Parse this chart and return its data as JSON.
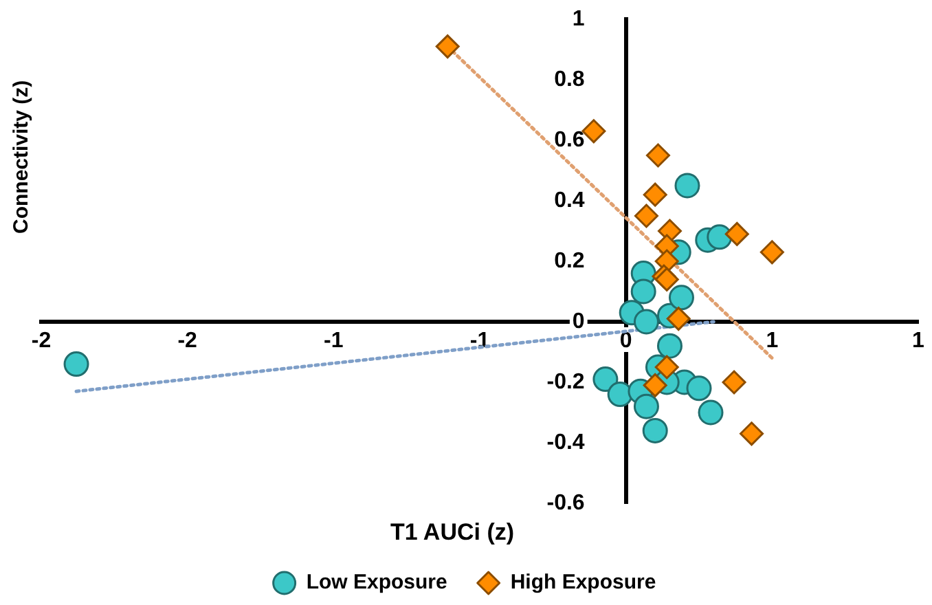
{
  "chart_data": {
    "type": "scatter",
    "xlabel": "T1 AUCi (z)",
    "ylabel": "Connectivity (z)",
    "xlim": [
      -2,
      1
    ],
    "ylim": [
      -0.6,
      1
    ],
    "xticks": [
      {
        "value": -2,
        "label": "-2"
      },
      {
        "value": -1.5,
        "label": "-2"
      },
      {
        "value": -1,
        "label": "-1"
      },
      {
        "value": -0.5,
        "label": "-1"
      },
      0,
      {
        "value": 0.5,
        "label": "1"
      },
      {
        "value": 1,
        "label": "1"
      }
    ],
    "yticks": [
      -0.6,
      -0.4,
      -0.2,
      0,
      0.2,
      0.4,
      0.6,
      0.8,
      1
    ],
    "grid": false,
    "legend": "bottom",
    "line_style": "dotted",
    "series": [
      {
        "name": "Low Exposure",
        "type": "scatter",
        "marker": "circle",
        "color": "#3cc8c8",
        "x": [
          -1.88,
          0.21,
          0.28,
          0.32,
          0.18,
          0.06,
          0.02,
          0.07,
          0.15,
          0.19,
          0.06,
          0.15,
          0.11,
          -0.07,
          -0.02,
          0.05,
          0.07,
          0.1,
          0.2,
          0.25,
          0.29,
          0.14
        ],
        "values": [
          -0.14,
          0.45,
          0.27,
          0.28,
          0.23,
          0.16,
          0.03,
          0.0,
          0.02,
          0.08,
          0.1,
          -0.08,
          -0.15,
          -0.19,
          -0.24,
          -0.23,
          -0.28,
          -0.36,
          -0.2,
          -0.22,
          -0.3,
          -0.2
        ]
      },
      {
        "name": "High Exposure",
        "type": "scatter",
        "marker": "diamond",
        "color": "#ff8c00",
        "x": [
          -0.61,
          -0.11,
          0.11,
          0.1,
          0.07,
          0.15,
          0.38,
          0.5,
          0.14,
          0.14,
          0.13,
          0.14,
          0.18,
          0.14,
          0.1,
          0.37,
          0.43
        ],
        "values": [
          0.91,
          0.63,
          0.55,
          0.42,
          0.35,
          0.3,
          0.29,
          0.23,
          0.25,
          0.2,
          0.15,
          0.14,
          0.01,
          -0.15,
          -0.21,
          -0.2,
          -0.37
        ]
      },
      {
        "type": "line",
        "color": "#7f9fc8",
        "x": [
          -1.88,
          0.3
        ],
        "values": [
          -0.23,
          0.0
        ]
      },
      {
        "type": "line",
        "color": "#e0a070",
        "x": [
          -0.61,
          0.5
        ],
        "values": [
          0.91,
          -0.12
        ]
      }
    ]
  }
}
